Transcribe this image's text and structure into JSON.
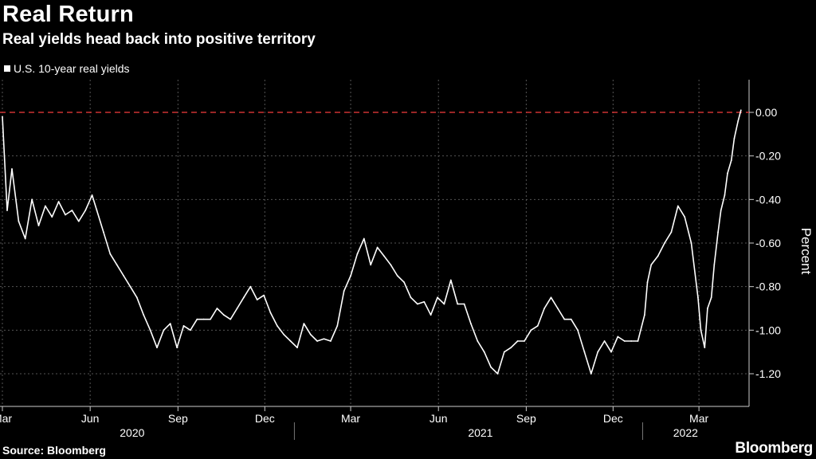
{
  "header": {
    "title": "Real Return",
    "subtitle": "Real yields head back into positive territory"
  },
  "footer": {
    "source": "Source: Bloomberg",
    "brand": "Bloomberg"
  },
  "colors": {
    "background": "#000000",
    "line": "#ffffff",
    "reference": "#cc3333",
    "grid": "#555555"
  },
  "chart_data": {
    "type": "line",
    "title": "Real Return",
    "subtitle": "Real yields head back into positive territory",
    "ylabel": "Percent",
    "xlabel": "",
    "ylim": [
      -1.35,
      0.15
    ],
    "y_ticks": [
      0.0,
      -0.2,
      -0.4,
      -0.6,
      -0.8,
      -1.0,
      -1.2
    ],
    "y_tick_labels": [
      "0.00",
      "-0.20",
      "-0.40",
      "-0.60",
      "-0.80",
      "-1.00",
      "-1.20"
    ],
    "grid": true,
    "legend_position": "top-left",
    "reference_line": {
      "y": 0.0,
      "style": "dashed"
    },
    "x_range": [
      "2020-03-01",
      "2022-04-15"
    ],
    "x_ticks": [
      {
        "date": "2020-03-01",
        "label": "Mar"
      },
      {
        "date": "2020-06-01",
        "label": "Jun"
      },
      {
        "date": "2020-09-01",
        "label": "Sep"
      },
      {
        "date": "2020-12-01",
        "label": "Dec"
      },
      {
        "date": "2021-03-01",
        "label": "Mar"
      },
      {
        "date": "2021-06-01",
        "label": "Jun"
      },
      {
        "date": "2021-09-01",
        "label": "Sep"
      },
      {
        "date": "2021-12-01",
        "label": "Dec"
      },
      {
        "date": "2022-03-01",
        "label": "Mar"
      }
    ],
    "year_labels": [
      {
        "date": "2020-07-15",
        "label": "2020"
      },
      {
        "date": "2021-07-15",
        "label": "2021"
      },
      {
        "date": "2022-02-15",
        "label": "2022"
      }
    ],
    "year_separators": [
      "2021-01-01",
      "2022-01-01"
    ],
    "series": [
      {
        "name": "U.S. 10-year real yields",
        "points": [
          [
            "2020-03-01",
            -0.02
          ],
          [
            "2020-03-06",
            -0.45
          ],
          [
            "2020-03-11",
            -0.26
          ],
          [
            "2020-03-18",
            -0.5
          ],
          [
            "2020-03-25",
            -0.58
          ],
          [
            "2020-04-01",
            -0.4
          ],
          [
            "2020-04-08",
            -0.52
          ],
          [
            "2020-04-15",
            -0.43
          ],
          [
            "2020-04-22",
            -0.48
          ],
          [
            "2020-04-29",
            -0.41
          ],
          [
            "2020-05-06",
            -0.47
          ],
          [
            "2020-05-13",
            -0.45
          ],
          [
            "2020-05-20",
            -0.5
          ],
          [
            "2020-05-27",
            -0.45
          ],
          [
            "2020-06-03",
            -0.38
          ],
          [
            "2020-06-08",
            -0.45
          ],
          [
            "2020-06-15",
            -0.55
          ],
          [
            "2020-06-22",
            -0.65
          ],
          [
            "2020-06-29",
            -0.7
          ],
          [
            "2020-07-06",
            -0.75
          ],
          [
            "2020-07-13",
            -0.8
          ],
          [
            "2020-07-20",
            -0.85
          ],
          [
            "2020-07-27",
            -0.93
          ],
          [
            "2020-08-03",
            -1.0
          ],
          [
            "2020-08-10",
            -1.08
          ],
          [
            "2020-08-17",
            -1.0
          ],
          [
            "2020-08-24",
            -0.97
          ],
          [
            "2020-08-31",
            -1.08
          ],
          [
            "2020-09-07",
            -0.98
          ],
          [
            "2020-09-14",
            -1.0
          ],
          [
            "2020-09-21",
            -0.95
          ],
          [
            "2020-09-28",
            -0.95
          ],
          [
            "2020-10-05",
            -0.95
          ],
          [
            "2020-10-12",
            -0.9
          ],
          [
            "2020-10-19",
            -0.93
          ],
          [
            "2020-10-26",
            -0.95
          ],
          [
            "2020-11-02",
            -0.9
          ],
          [
            "2020-11-09",
            -0.85
          ],
          [
            "2020-11-16",
            -0.8
          ],
          [
            "2020-11-23",
            -0.86
          ],
          [
            "2020-11-30",
            -0.84
          ],
          [
            "2020-12-07",
            -0.92
          ],
          [
            "2020-12-14",
            -0.98
          ],
          [
            "2020-12-21",
            -1.02
          ],
          [
            "2020-12-28",
            -1.05
          ],
          [
            "2021-01-04",
            -1.08
          ],
          [
            "2021-01-11",
            -0.97
          ],
          [
            "2021-01-18",
            -1.02
          ],
          [
            "2021-01-25",
            -1.05
          ],
          [
            "2021-02-01",
            -1.04
          ],
          [
            "2021-02-08",
            -1.05
          ],
          [
            "2021-02-15",
            -0.98
          ],
          [
            "2021-02-22",
            -0.82
          ],
          [
            "2021-03-01",
            -0.75
          ],
          [
            "2021-03-08",
            -0.65
          ],
          [
            "2021-03-15",
            -0.58
          ],
          [
            "2021-03-22",
            -0.7
          ],
          [
            "2021-03-29",
            -0.62
          ],
          [
            "2021-04-05",
            -0.66
          ],
          [
            "2021-04-12",
            -0.7
          ],
          [
            "2021-04-19",
            -0.75
          ],
          [
            "2021-04-26",
            -0.78
          ],
          [
            "2021-05-03",
            -0.85
          ],
          [
            "2021-05-10",
            -0.88
          ],
          [
            "2021-05-17",
            -0.87
          ],
          [
            "2021-05-24",
            -0.93
          ],
          [
            "2021-05-31",
            -0.85
          ],
          [
            "2021-06-07",
            -0.88
          ],
          [
            "2021-06-14",
            -0.77
          ],
          [
            "2021-06-21",
            -0.88
          ],
          [
            "2021-06-28",
            -0.88
          ],
          [
            "2021-07-05",
            -0.97
          ],
          [
            "2021-07-12",
            -1.05
          ],
          [
            "2021-07-19",
            -1.1
          ],
          [
            "2021-07-26",
            -1.17
          ],
          [
            "2021-08-02",
            -1.2
          ],
          [
            "2021-08-09",
            -1.1
          ],
          [
            "2021-08-16",
            -1.08
          ],
          [
            "2021-08-23",
            -1.05
          ],
          [
            "2021-08-30",
            -1.05
          ],
          [
            "2021-09-06",
            -1.0
          ],
          [
            "2021-09-13",
            -0.98
          ],
          [
            "2021-09-20",
            -0.9
          ],
          [
            "2021-09-27",
            -0.85
          ],
          [
            "2021-10-04",
            -0.9
          ],
          [
            "2021-10-11",
            -0.95
          ],
          [
            "2021-10-18",
            -0.95
          ],
          [
            "2021-10-25",
            -1.0
          ],
          [
            "2021-11-01",
            -1.1
          ],
          [
            "2021-11-08",
            -1.2
          ],
          [
            "2021-11-15",
            -1.1
          ],
          [
            "2021-11-22",
            -1.05
          ],
          [
            "2021-11-29",
            -1.1
          ],
          [
            "2021-12-06",
            -1.03
          ],
          [
            "2021-12-13",
            -1.05
          ],
          [
            "2021-12-20",
            -1.05
          ],
          [
            "2021-12-27",
            -1.05
          ],
          [
            "2022-01-03",
            -0.93
          ],
          [
            "2022-01-06",
            -0.78
          ],
          [
            "2022-01-10",
            -0.7
          ],
          [
            "2022-01-17",
            -0.66
          ],
          [
            "2022-01-24",
            -0.6
          ],
          [
            "2022-01-31",
            -0.55
          ],
          [
            "2022-02-07",
            -0.43
          ],
          [
            "2022-02-14",
            -0.48
          ],
          [
            "2022-02-21",
            -0.6
          ],
          [
            "2022-02-28",
            -0.85
          ],
          [
            "2022-03-03",
            -1.0
          ],
          [
            "2022-03-07",
            -1.08
          ],
          [
            "2022-03-10",
            -0.9
          ],
          [
            "2022-03-14",
            -0.85
          ],
          [
            "2022-03-17",
            -0.7
          ],
          [
            "2022-03-21",
            -0.55
          ],
          [
            "2022-03-24",
            -0.45
          ],
          [
            "2022-03-28",
            -0.38
          ],
          [
            "2022-03-31",
            -0.28
          ],
          [
            "2022-04-04",
            -0.22
          ],
          [
            "2022-04-07",
            -0.12
          ],
          [
            "2022-04-11",
            -0.04
          ],
          [
            "2022-04-14",
            0.01
          ]
        ]
      }
    ]
  }
}
